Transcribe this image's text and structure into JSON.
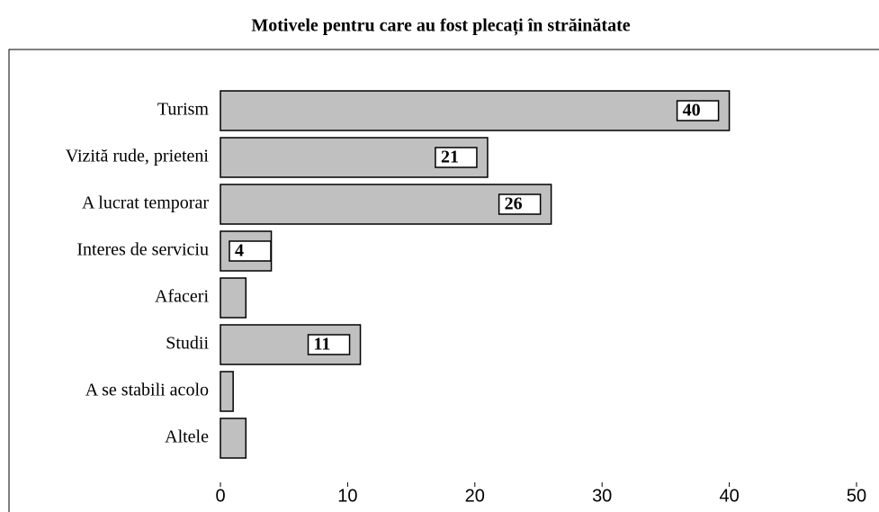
{
  "chart_data": {
    "type": "bar",
    "orientation": "horizontal",
    "title": "Motivele pentru care au fost plecați în străinătate",
    "categories": [
      "Turism",
      "Vizită rude, prieteni",
      "A lucrat temporar",
      "Interes de serviciu",
      "Afaceri",
      "Studii",
      "A se stabili acolo",
      "Altele"
    ],
    "values": [
      40,
      21,
      26,
      4,
      2,
      11,
      1,
      2
    ],
    "value_labels": [
      "40",
      "21",
      "26",
      "4",
      null,
      "11",
      null,
      null
    ],
    "color": "#c0c0c0",
    "xlim": [
      0,
      50
    ],
    "xticks": [
      0,
      10,
      20,
      30,
      40,
      50
    ]
  }
}
